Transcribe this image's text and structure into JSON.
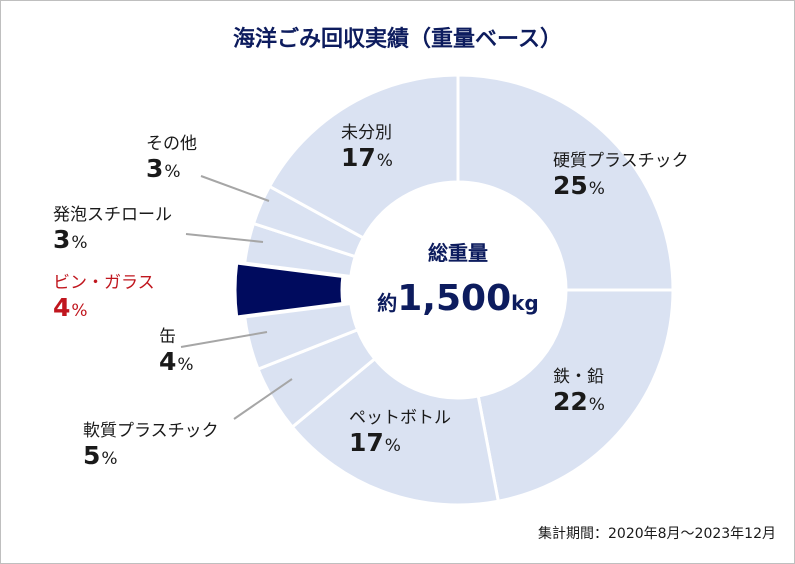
{
  "title": "海洋ごみ回収実績（重量ベース）",
  "center": {
    "label": "総重量",
    "prefix": "約",
    "total": "1,500",
    "unit": "kg"
  },
  "footnote": "集計期間：2020年8月～2023年12月",
  "colors": {
    "slice": "#dae2f2",
    "highlight": "#000b5e",
    "title": "#0d1c5e",
    "highlight_text": "#c0161e"
  },
  "chart_data": {
    "type": "pie",
    "variant": "donut",
    "title": "海洋ごみ回収実績（重量ベース）",
    "unit": "%",
    "categories": [
      "硬質プラスチック",
      "鉄・鉛",
      "ペットボトル",
      "軟質プラスチック",
      "缶",
      "ビン・ガラス",
      "発泡スチロール",
      "その他",
      "未分別"
    ],
    "values": [
      25,
      22,
      17,
      5,
      4,
      4,
      3,
      3,
      17
    ],
    "highlight": "ビン・ガラス",
    "total_label": "約1,500kg"
  }
}
